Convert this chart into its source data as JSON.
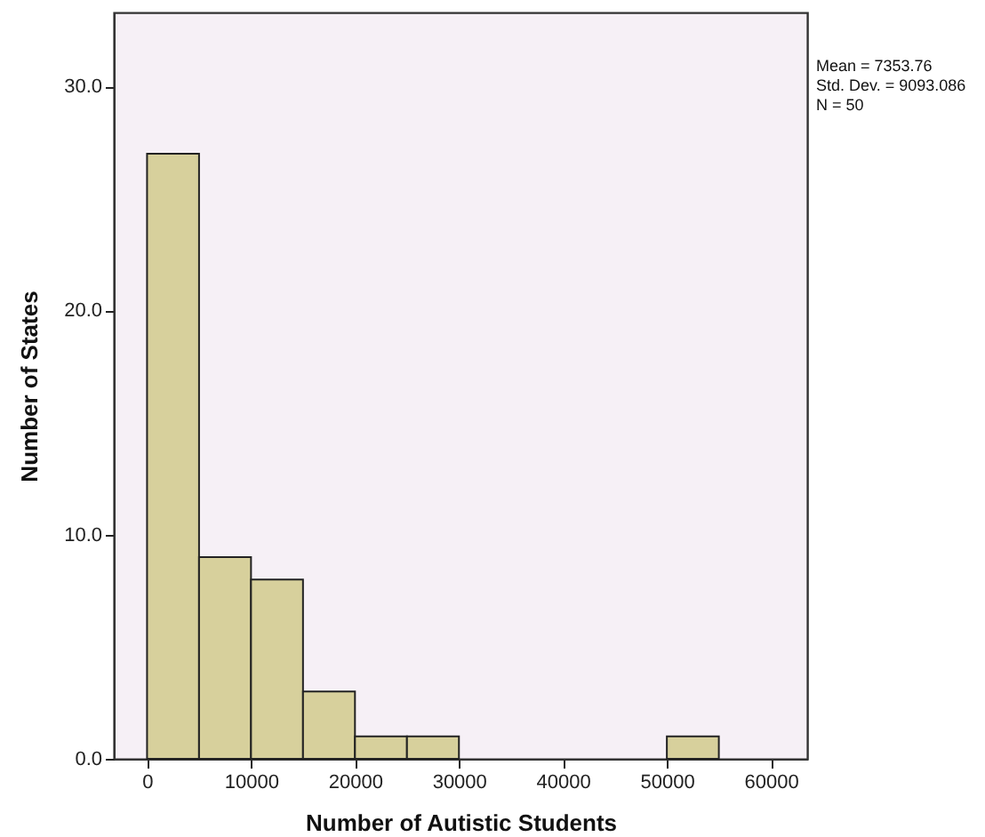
{
  "chart_data": {
    "type": "histogram",
    "xlabel": "Number of Autistic Students",
    "ylabel": "Number of States",
    "bins": [
      0,
      5000,
      10000,
      15000,
      20000,
      25000,
      30000,
      35000,
      40000,
      45000,
      50000,
      55000
    ],
    "values": [
      27,
      9,
      8,
      3,
      1,
      1,
      0,
      0,
      0,
      0,
      1
    ],
    "color": "#d7d09c",
    "xlim": [
      -3200,
      63500
    ],
    "xticks": [
      0,
      10000,
      20000,
      30000,
      40000,
      50000,
      60000
    ],
    "ylim": [
      0,
      33.3
    ],
    "yticks": [
      {
        "value": 0,
        "label": "0.0"
      },
      {
        "value": 10,
        "label": "10.0"
      },
      {
        "value": 20,
        "label": "20.0"
      },
      {
        "value": 30,
        "label": "30.0"
      }
    ],
    "annotations": [
      "Mean = 7353.76",
      "Std. Dev. = 9093.086",
      "N = 50"
    ]
  }
}
